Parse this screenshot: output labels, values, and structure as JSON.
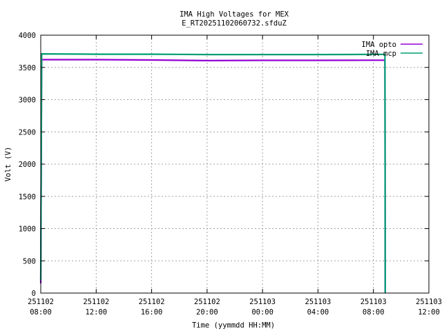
{
  "chart_data": {
    "type": "line",
    "title": "IMA High Voltages for MEX",
    "subtitle": "E_RT20251102060732.sfduZ",
    "xlabel": "Time (yymmdd HH:MM)",
    "ylabel": "Volt (V)",
    "x_range": [
      "2025-11-02 08:00",
      "2025-11-03 12:00"
    ],
    "ylim": [
      0,
      4000
    ],
    "y_ticks": [
      0,
      500,
      1000,
      1500,
      2000,
      2500,
      3000,
      3500,
      4000
    ],
    "x_ticks": [
      {
        "date": "251102",
        "time": "08:00"
      },
      {
        "date": "251102",
        "time": "12:00"
      },
      {
        "date": "251102",
        "time": "16:00"
      },
      {
        "date": "251102",
        "time": "20:00"
      },
      {
        "date": "251103",
        "time": "00:00"
      },
      {
        "date": "251103",
        "time": "04:00"
      },
      {
        "date": "251103",
        "time": "08:00"
      },
      {
        "date": "251103",
        "time": "12:00"
      }
    ],
    "grid": true,
    "legend_position": "top-right",
    "series": [
      {
        "name": "IMA opto",
        "color": "#9400d3",
        "points": [
          [
            "2025-11-02 08:00",
            150
          ],
          [
            "2025-11-02 08:04",
            3620
          ],
          [
            "2025-11-02 12:00",
            3620
          ],
          [
            "2025-11-02 16:00",
            3615
          ],
          [
            "2025-11-02 20:00",
            3605
          ],
          [
            "2025-11-03 00:00",
            3610
          ],
          [
            "2025-11-03 04:00",
            3610
          ],
          [
            "2025-11-03 08:00",
            3612
          ],
          [
            "2025-11-03 08:50",
            3612
          ],
          [
            "2025-11-03 08:51",
            0
          ]
        ]
      },
      {
        "name": "IMA mcp",
        "color": "#009e73",
        "points": [
          [
            "2025-11-02 08:00",
            200
          ],
          [
            "2025-11-02 08:04",
            3710
          ],
          [
            "2025-11-02 12:00",
            3705
          ],
          [
            "2025-11-02 16:00",
            3705
          ],
          [
            "2025-11-02 20:00",
            3700
          ],
          [
            "2025-11-03 00:00",
            3700
          ],
          [
            "2025-11-03 04:00",
            3700
          ],
          [
            "2025-11-03 08:00",
            3702
          ],
          [
            "2025-11-03 08:50",
            3702
          ],
          [
            "2025-11-03 08:51",
            0
          ]
        ]
      }
    ]
  }
}
